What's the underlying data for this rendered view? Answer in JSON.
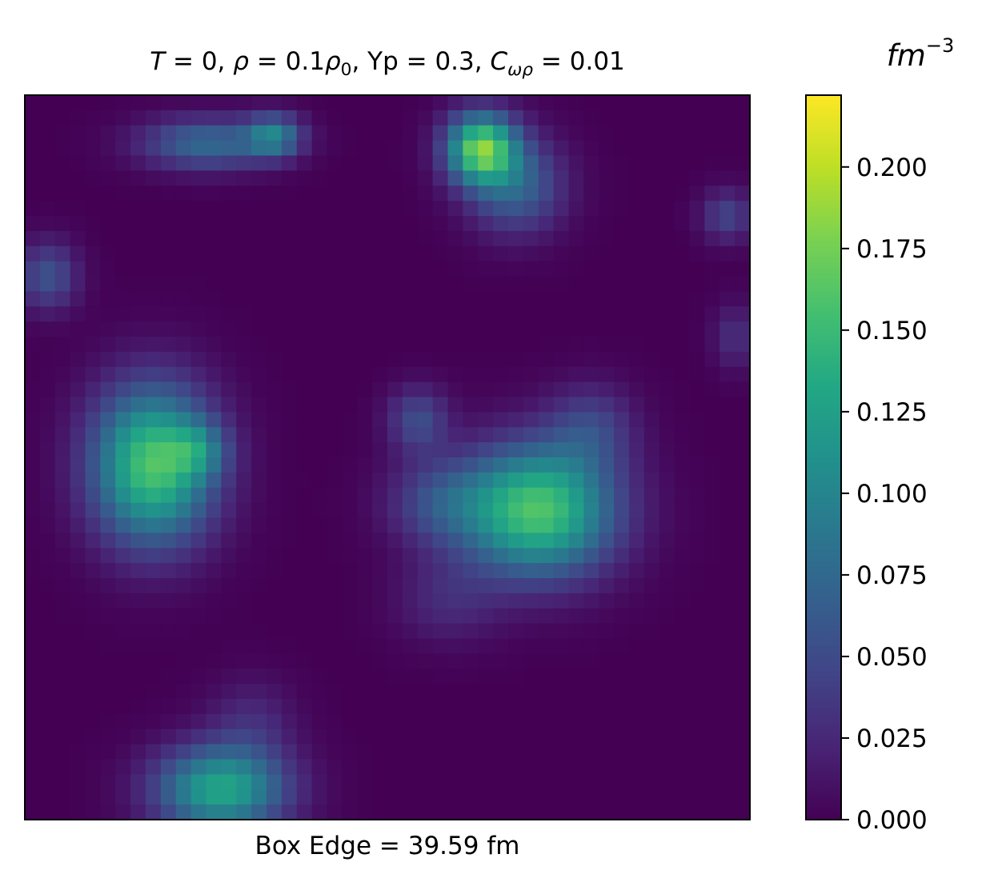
{
  "chart_data": {
    "type": "heatmap",
    "title_parts": {
      "t": "T",
      "t_eq": " = 0, ",
      "rho": "ρ",
      "rho_eq": " = 0.1",
      "rho0": "ρ",
      "rho0_sub": "0",
      "yp": ", Yp = 0.3, ",
      "c": "C",
      "c_sub": "ωρ",
      "c_eq": " = 0.01"
    },
    "xlabel": "Box Edge = 39.59 fm",
    "colorbar": {
      "label_base": "fm",
      "label_exp": "−3",
      "range": [
        0.0,
        0.222
      ],
      "ticks": [
        0.0,
        0.025,
        0.05,
        0.075,
        0.1,
        0.125,
        0.15,
        0.175,
        0.2
      ],
      "tick_labels": [
        "0.000",
        "0.025",
        "0.050",
        "0.075",
        "0.100",
        "0.125",
        "0.150",
        "0.175",
        "0.200"
      ],
      "colormap": "viridis"
    },
    "grid_size": [
      48,
      48
    ],
    "blobs": [
      {
        "cx": 16.5,
        "cy": 2.7,
        "sx": 1.3,
        "sy": 1.0,
        "amp": 0.085
      },
      {
        "cx": 12.0,
        "cy": 3.2,
        "sx": 3.0,
        "sy": 1.2,
        "amp": 0.075
      },
      {
        "cx": 30.2,
        "cy": 3.5,
        "sx": 1.6,
        "sy": 1.6,
        "amp": 0.165
      },
      {
        "cx": 32.5,
        "cy": 6.0,
        "sx": 2.2,
        "sy": 2.2,
        "amp": 0.07
      },
      {
        "cx": 46.5,
        "cy": 8.0,
        "sx": 1.2,
        "sy": 1.2,
        "amp": 0.045
      },
      {
        "cx": 1.5,
        "cy": 12.0,
        "sx": 1.4,
        "sy": 1.6,
        "amp": 0.055
      },
      {
        "cx": 47.0,
        "cy": 16.0,
        "sx": 1.0,
        "sy": 1.5,
        "amp": 0.03
      },
      {
        "cx": 8.5,
        "cy": 24.5,
        "sx": 2.8,
        "sy": 3.6,
        "amp": 0.16
      },
      {
        "cx": 11.5,
        "cy": 23.5,
        "sx": 1.3,
        "sy": 1.2,
        "amp": 0.05
      },
      {
        "cx": 26.0,
        "cy": 21.5,
        "sx": 1.4,
        "sy": 1.5,
        "amp": 0.05
      },
      {
        "cx": 34.0,
        "cy": 27.5,
        "sx": 3.5,
        "sy": 3.0,
        "amp": 0.16
      },
      {
        "cx": 27.5,
        "cy": 27.0,
        "sx": 2.5,
        "sy": 2.0,
        "amp": 0.045
      },
      {
        "cx": 37.5,
        "cy": 22.0,
        "sx": 2.0,
        "sy": 2.0,
        "amp": 0.04
      },
      {
        "cx": 28.0,
        "cy": 33.5,
        "sx": 2.5,
        "sy": 2.0,
        "amp": 0.025
      },
      {
        "cx": 13.0,
        "cy": 46.0,
        "sx": 3.0,
        "sy": 2.0,
        "amp": 0.13
      },
      {
        "cx": 15.0,
        "cy": 41.5,
        "sx": 2.0,
        "sy": 2.0,
        "amp": 0.025
      }
    ]
  }
}
